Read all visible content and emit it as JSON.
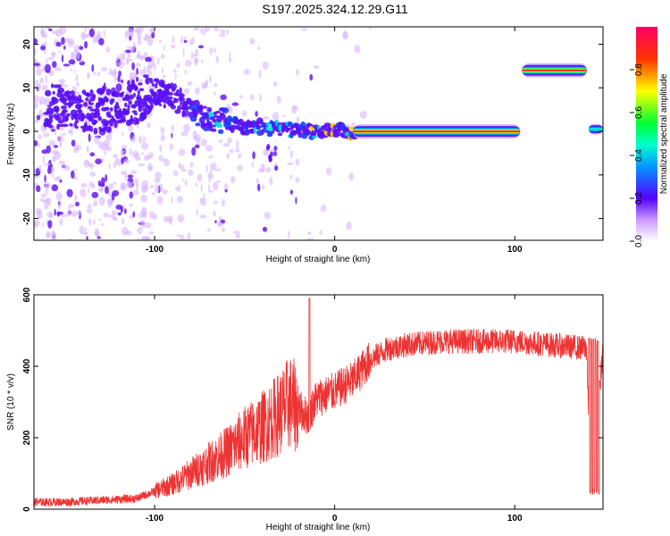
{
  "figure": {
    "title": "S197.2025.324.12.29.G11"
  },
  "chart_data": [
    {
      "type": "heatmap",
      "title": "S197.2025.324.12.29.G11",
      "xlabel": "Height of straight line (km)",
      "ylabel": "Frequency (Hz)",
      "xlim": [
        -167,
        149
      ],
      "ylim": [
        -25,
        24
      ],
      "xticks": [
        -100,
        0,
        100
      ],
      "yticks": [
        -20,
        -10,
        0,
        10,
        20
      ],
      "colorbar": {
        "label": "Normalized spectral amplitude",
        "range": [
          0,
          1
        ],
        "ticks": [
          0.0,
          0.2,
          0.4,
          0.6,
          0.8
        ]
      },
      "ridge": [
        {
          "x": -155,
          "y": 6
        },
        {
          "x": -140,
          "y": 5
        },
        {
          "x": -125,
          "y": 5
        },
        {
          "x": -110,
          "y": 7
        },
        {
          "x": -100,
          "y": 9
        },
        {
          "x": -90,
          "y": 8
        },
        {
          "x": -80,
          "y": 5
        },
        {
          "x": -70,
          "y": 3
        },
        {
          "x": -60,
          "y": 2
        },
        {
          "x": -50,
          "y": 1
        },
        {
          "x": -40,
          "y": 1
        },
        {
          "x": -30,
          "y": 0.5
        },
        {
          "x": -20,
          "y": 0
        },
        {
          "x": -10,
          "y": 0
        },
        {
          "x": 0,
          "y": 0.5
        },
        {
          "x": 10,
          "y": 0
        },
        {
          "x": 30,
          "y": 0
        },
        {
          "x": 50,
          "y": 0
        },
        {
          "x": 70,
          "y": 0
        },
        {
          "x": 90,
          "y": 0
        },
        {
          "x": 100,
          "y": 0
        }
      ],
      "bands": [
        {
          "x_start": 10,
          "x_end": 103,
          "y": 0,
          "amplitude": 1.0
        },
        {
          "x_start": 104,
          "x_end": 140,
          "y": 14,
          "amplitude": 1.0
        },
        {
          "x_start": 141,
          "x_end": 149,
          "y": 0.5,
          "amplitude": 0.35
        }
      ]
    },
    {
      "type": "line",
      "xlabel": "Height of straight line (km)",
      "ylabel": "SNR (10 * v/v)",
      "xlim": [
        -167,
        149
      ],
      "ylim": [
        0,
        600
      ],
      "xticks": [
        -100,
        0,
        100
      ],
      "yticks": [
        0,
        200,
        400,
        600
      ],
      "series": [
        {
          "color": "#ee3333",
          "x": [
            -167,
            -150,
            -130,
            -110,
            -100,
            -90,
            -80,
            -70,
            -60,
            -50,
            -40,
            -30,
            -25,
            -20,
            -15,
            -10,
            -5,
            0,
            10,
            20,
            30,
            40,
            60,
            80,
            100,
            120,
            140,
            142,
            149
          ],
          "y": [
            20,
            20,
            25,
            30,
            50,
            70,
            100,
            130,
            160,
            200,
            230,
            270,
            300,
            280,
            260,
            310,
            320,
            330,
            360,
            420,
            450,
            460,
            470,
            470,
            470,
            460,
            450,
            50,
            450
          ]
        }
      ]
    }
  ]
}
